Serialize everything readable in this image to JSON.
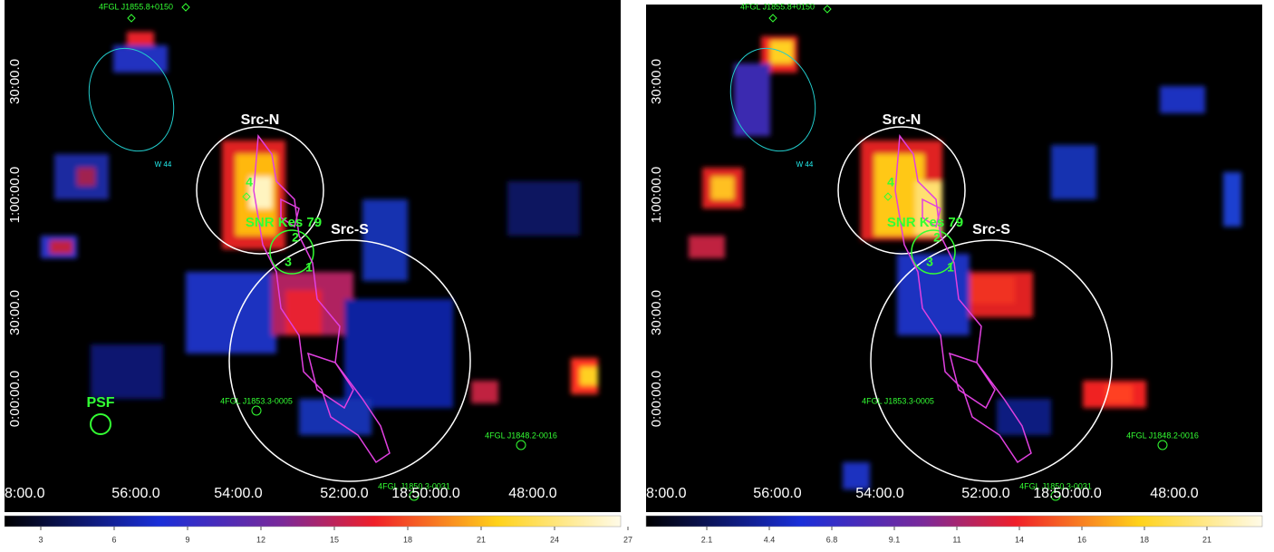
{
  "panels": [
    {
      "annotations": [
        "4FGL J1855.8+0150",
        "W 44",
        "Src-N",
        "Src-S",
        "SNR Kes 79",
        "1",
        "2",
        "3",
        "4",
        "4FGL J1853.3-0005",
        "4FGL J1848.2-0016",
        "4FGL J1850.3-0031",
        "PSF"
      ],
      "ra_labels": [
        "8:00.0",
        "56:00.0",
        "54:00.0",
        "52:00.0",
        "18:50:00.0",
        "48:00.0"
      ],
      "dec_labels": [
        "30:00.0",
        "1:00:00.0",
        "30:00.0",
        "0:00:00.0"
      ],
      "colorbar_ticks": [
        3,
        6,
        9,
        12,
        15,
        18,
        21,
        24,
        27
      ]
    },
    {
      "annotations": [
        "4FGL J1855.8+0150",
        "W 44",
        "Src-N",
        "Src-S",
        "SNR Kes 79",
        "1",
        "2",
        "3",
        "4",
        "4FGL J1853.3-0005",
        "4FGL J1848.2-0016",
        "4FGL J1850.3-0031"
      ],
      "ra_labels": [
        "8:00.0",
        "56:00.0",
        "54:00.0",
        "52:00.0",
        "18:50:00.0",
        "48:00.0"
      ],
      "dec_labels": [
        "30:00.0",
        "1:00:00.0",
        "30:00.0",
        "0:00:00.0"
      ],
      "colorbar_ticks": [
        2.1,
        4.4,
        6.8,
        9.1,
        11,
        14,
        16,
        18,
        21
      ]
    }
  ]
}
